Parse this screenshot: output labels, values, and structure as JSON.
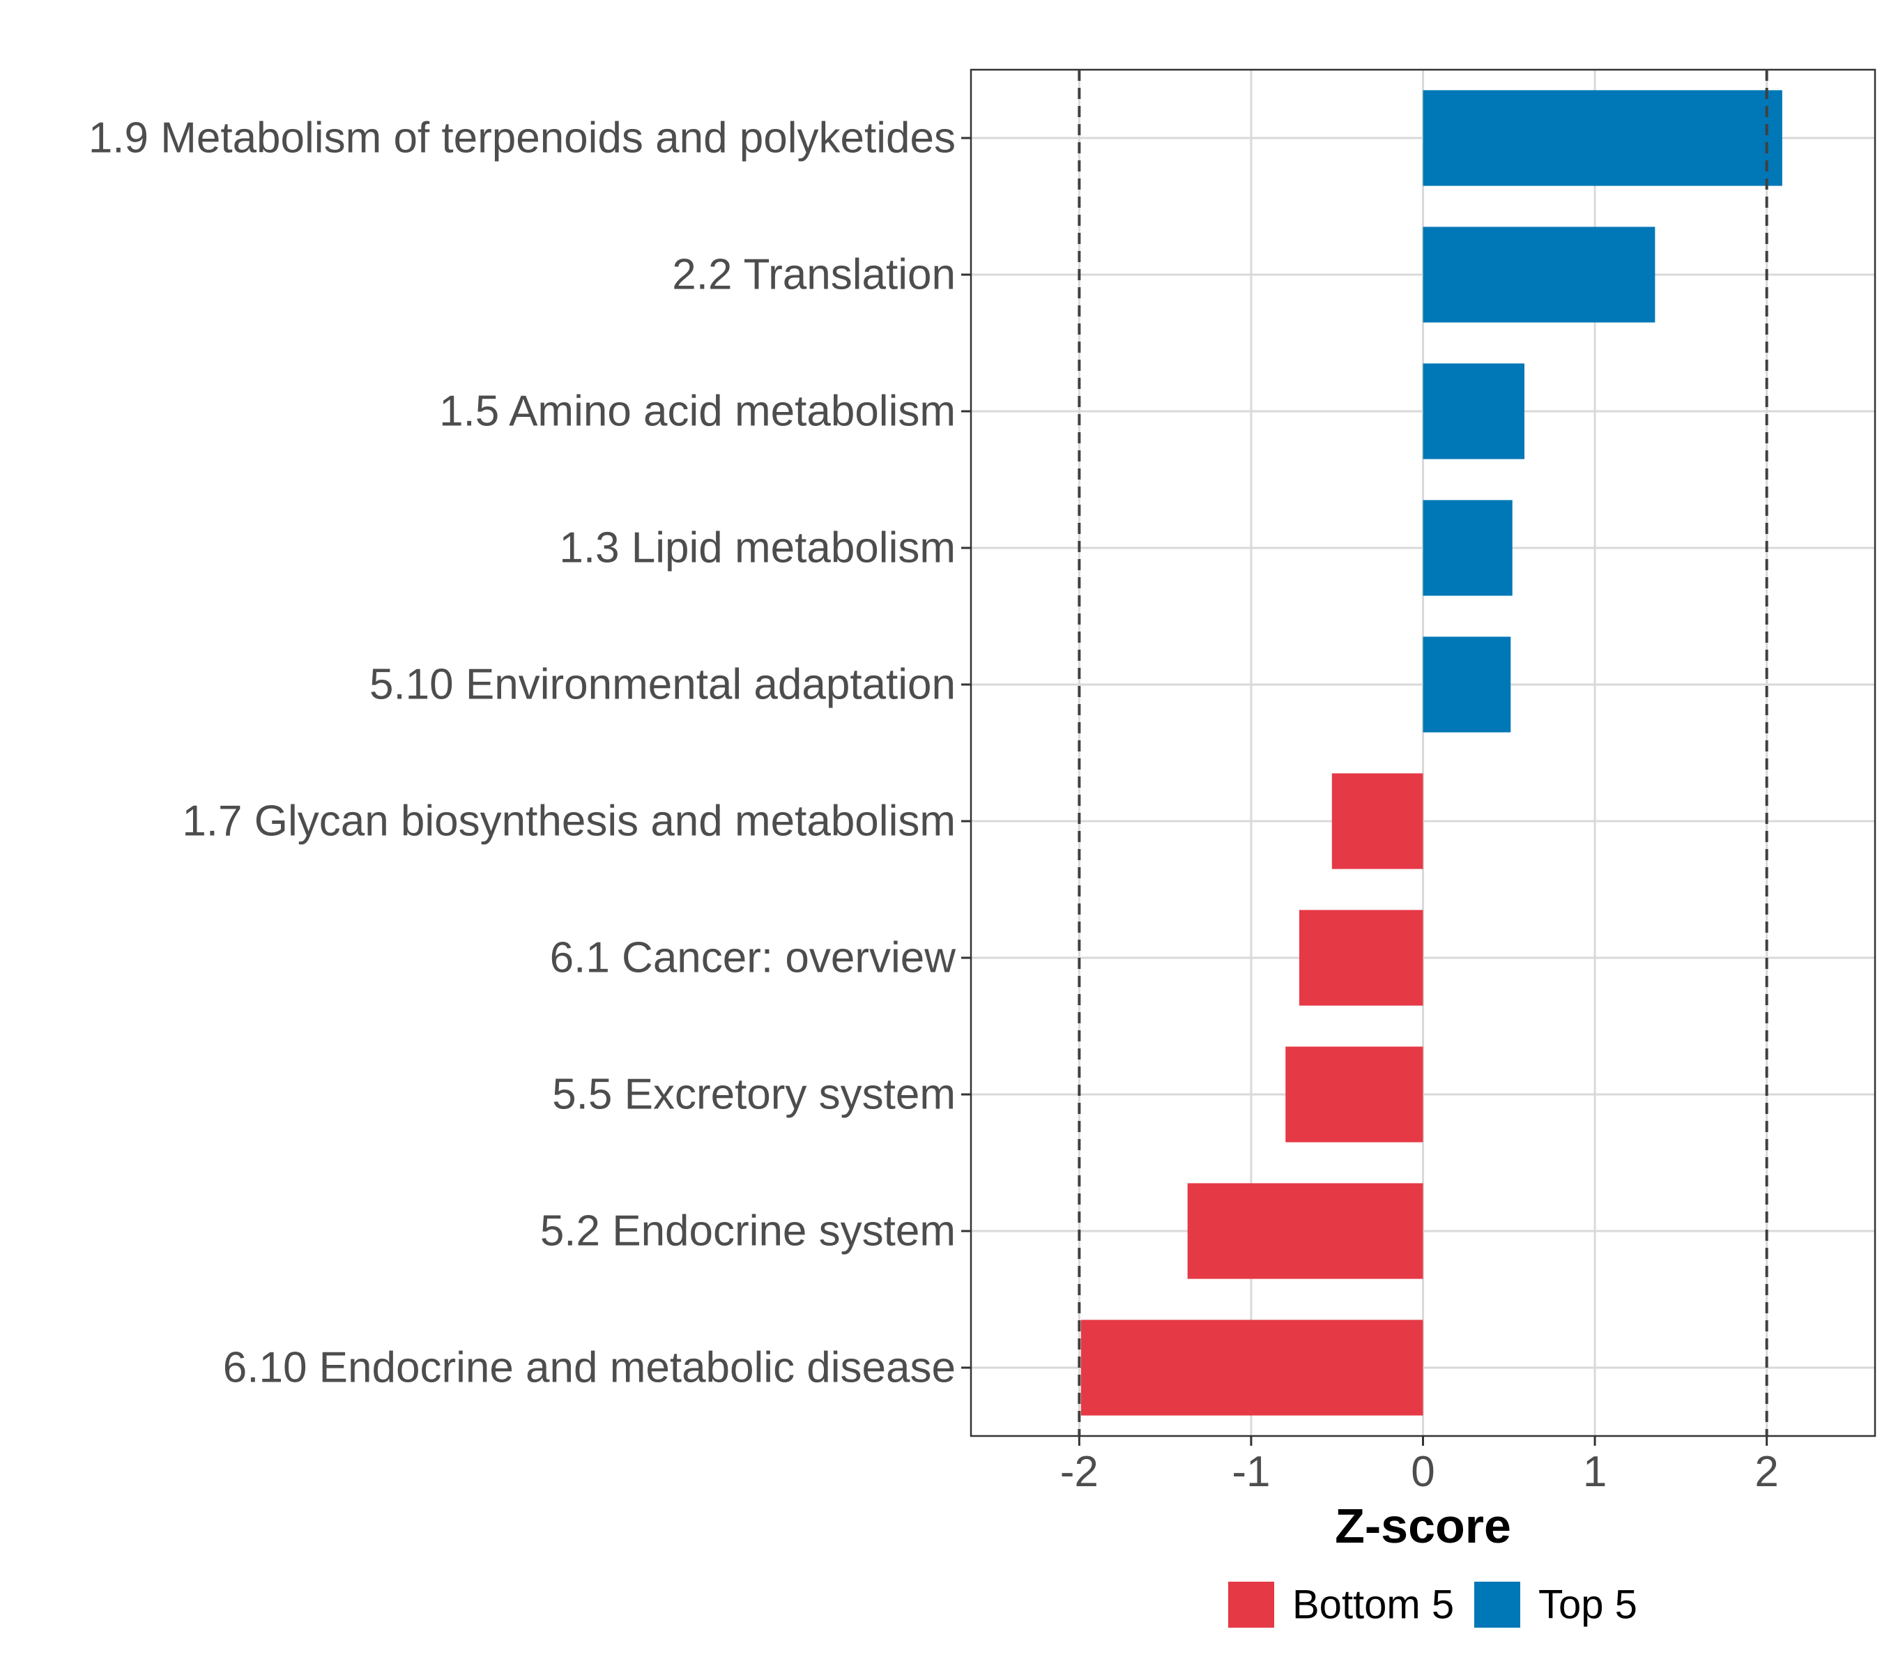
{
  "chart_data": {
    "type": "bar",
    "orientation": "horizontal",
    "categories": [
      "1.9 Metabolism of terpenoids and polyketides",
      "2.2 Translation",
      "1.5 Amino acid metabolism",
      "1.3 Lipid metabolism",
      "5.10 Environmental adaptation",
      "1.7 Glycan biosynthesis and metabolism",
      "6.1 Cancer: overview",
      "5.5 Excretory system",
      "5.2 Endocrine system",
      "6.10 Endocrine and metabolic disease"
    ],
    "values": [
      2.09,
      1.35,
      0.59,
      0.52,
      0.51,
      -0.53,
      -0.72,
      -0.8,
      -1.37,
      -1.99
    ],
    "groups": [
      "Top 5",
      "Top 5",
      "Top 5",
      "Top 5",
      "Top 5",
      "Bottom 5",
      "Bottom 5",
      "Bottom 5",
      "Bottom 5",
      "Bottom 5"
    ],
    "xlabel": "Z-score",
    "ylabel": "",
    "xlim": [
      -2.63,
      2.63
    ],
    "xticks": [
      -2,
      -1,
      0,
      1,
      2
    ],
    "tick_labels": [
      "-2",
      "-1",
      "0",
      "1",
      "2"
    ],
    "reference_lines": [
      -2,
      2
    ],
    "legend": {
      "position": "bottom",
      "entries": [
        {
          "label": "Bottom 5",
          "color": "#e63946"
        },
        {
          "label": "Top 5",
          "color": "#0077b6"
        }
      ]
    },
    "grid": true
  }
}
